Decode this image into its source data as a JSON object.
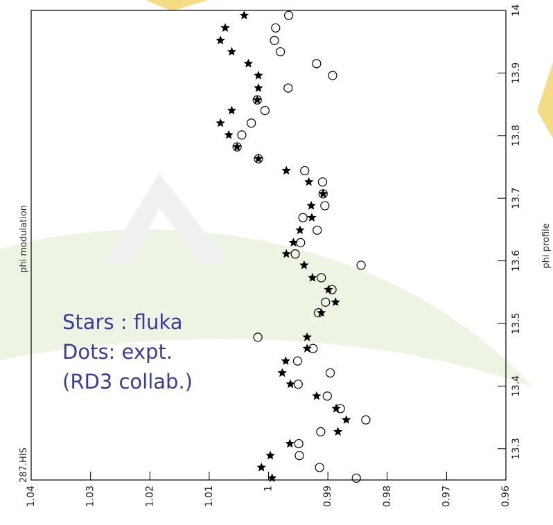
{
  "chart_data": {
    "type": "scatter",
    "x_label": "phi profile",
    "y_label": "phi modulation",
    "histogram_id": "287.HIS",
    "annotations": [
      "Stars : fluka",
      "Dots: expt.",
      "(RD3 collab.)"
    ],
    "xlim": [
      13.25,
      14
    ],
    "xticks": [
      13.3,
      13.4,
      13.5,
      13.6,
      13.7,
      13.8,
      13.9,
      14
    ],
    "ylim": [
      1.04,
      0.96
    ],
    "yticks": [
      1.04,
      1.03,
      1.02,
      1.01,
      1,
      0.99,
      0.98,
      0.97,
      0.96
    ],
    "series": [
      {
        "marker": "star",
        "color": "#000000",
        "x": [
          13.992,
          13.972,
          13.952,
          13.934,
          13.915,
          13.896,
          13.876,
          13.857,
          13.84,
          13.82,
          13.801,
          13.782,
          13.763,
          13.744,
          13.726,
          13.707,
          13.688,
          13.669,
          13.649,
          13.629,
          13.611,
          13.593,
          13.573,
          13.554,
          13.534,
          13.517,
          13.478,
          13.46,
          13.44,
          13.421,
          13.403,
          13.384,
          13.364,
          13.346,
          13.327,
          13.308,
          13.289,
          13.27,
          13.253
        ],
        "values": [
          1.0041,
          1.0073,
          1.0081,
          1.0062,
          1.0034,
          1.0017,
          1.0017,
          1.0019,
          1.0062,
          1.0081,
          1.0067,
          1.0053,
          1.0017,
          0.997,
          0.9932,
          0.9908,
          0.9928,
          0.9927,
          0.9947,
          0.9958,
          0.997,
          0.994,
          0.9926,
          0.9899,
          0.9887,
          0.9911,
          0.9935,
          0.9935,
          0.9971,
          0.9977,
          0.9963,
          0.9919,
          0.9886,
          0.9869,
          0.9883,
          0.9964,
          0.9997,
          1.0012,
          0.9994
        ]
      },
      {
        "marker": "circle",
        "color": "#000000",
        "x": [
          13.992,
          13.972,
          13.952,
          13.934,
          13.915,
          13.896,
          13.876,
          13.857,
          13.84,
          13.82,
          13.801,
          13.782,
          13.763,
          13.744,
          13.726,
          13.707,
          13.688,
          13.669,
          13.649,
          13.629,
          13.611,
          13.593,
          13.573,
          13.554,
          13.534,
          13.517,
          13.478,
          13.46,
          13.44,
          13.421,
          13.403,
          13.384,
          13.364,
          13.346,
          13.327,
          13.308,
          13.289,
          13.27,
          13.253
        ],
        "values": [
          0.9966,
          0.9988,
          0.999,
          0.998,
          0.9919,
          0.9892,
          0.9967,
          1.0019,
          1.0006,
          1.0029,
          1.0045,
          1.0053,
          1.0017,
          0.9939,
          0.9909,
          0.9908,
          0.9905,
          0.9942,
          0.9918,
          0.9946,
          0.9955,
          0.9844,
          0.9911,
          0.9893,
          0.9904,
          0.9916,
          1.0018,
          0.9925,
          0.9951,
          0.9896,
          0.995,
          0.9901,
          0.9879,
          0.9836,
          0.9912,
          0.9949,
          0.9948,
          0.9914,
          0.9852
        ]
      }
    ]
  }
}
